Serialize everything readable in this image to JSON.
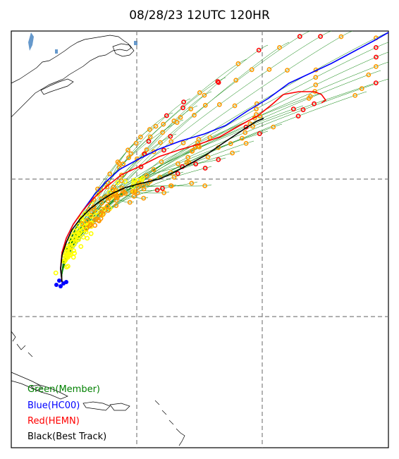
{
  "title": "08/28/23 12UTC 120HR",
  "legend": [
    {
      "label": "Green(Member)",
      "color": "#008000"
    },
    {
      "label": "Blue(HC00)",
      "color": "#0000ff"
    },
    {
      "label": "Red(HEMN)",
      "color": "#ff0000"
    },
    {
      "label": "Black(Best Track)",
      "color": "#000000"
    }
  ],
  "colors": {
    "member": "#008000",
    "hc00": "#0000ff",
    "hemn": "#ff0000",
    "best_track": "#000000",
    "marker_early": "#ffff00",
    "marker_mid": "#ff9900",
    "marker_late": "#ff0000",
    "grid": "#808080",
    "land_outline": "#000000",
    "lake": "#6699cc"
  },
  "grid": {
    "style": "dashed",
    "lines": 2
  }
}
